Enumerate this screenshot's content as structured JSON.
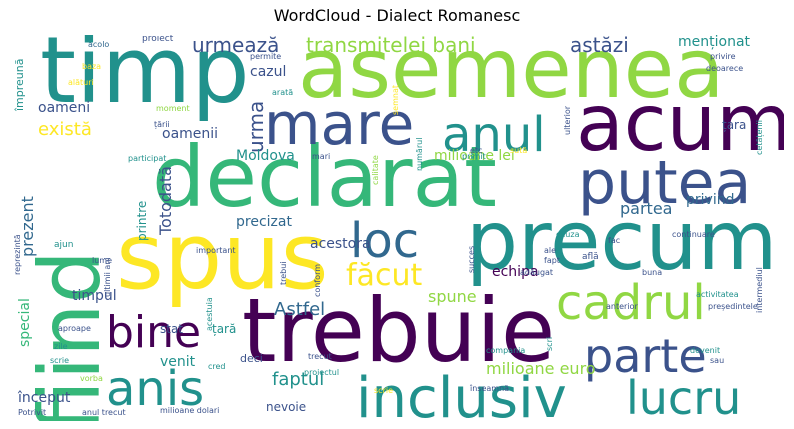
{
  "title": "WordCloud - Dialect Romanesc",
  "colors": {
    "dark_purple": "#440154",
    "indigo": "#3b528b",
    "blue": "#31688e",
    "teal": "#21918c",
    "green": "#35b779",
    "lime": "#90d743",
    "yellow": "#fde725"
  },
  "words": [
    "asemenea",
    "timp",
    "declarat",
    "spus",
    "precum",
    "acum",
    "trebuie",
    "fiind",
    "putea",
    "mare",
    "anul",
    "loc",
    "cadrul",
    "parte",
    "inclusiv",
    "lucru",
    "anis",
    "bine",
    "făcut",
    "transmitelei bani",
    "urmează",
    "astăzi",
    "menționat",
    "există",
    "oameni",
    "oamenii",
    "urma",
    "cazul",
    "Moldova",
    "milioane lei",
    "Totodată",
    "prezent",
    "partea",
    "precizat",
    "privind",
    "acestora",
    "spune",
    "echipa",
    "Astfel",
    "timpul",
    "special",
    "faptul",
    "milioane euro",
    "venit",
    "început",
    "nevoie",
    "țara",
    "țară",
    "stat",
    "printre",
    "proiect",
    "acolo",
    "împreună",
    "baza",
    "alături",
    "permite",
    "moment",
    "țării",
    "arată",
    "semnat",
    "privire",
    "deoarece",
    "ulterior",
    "cetățenii",
    "lume",
    "participat",
    "reprezintă",
    "ajun",
    "important",
    "mari",
    "calitate",
    "numărul",
    "primit",
    "etc",
    "sută",
    "cauza",
    "continuare",
    "ale",
    "fapt",
    "fac",
    "află",
    "adăugat",
    "buna",
    "compania",
    "activitatea",
    "anterior",
    "președintele",
    "intermediul",
    "acestuia",
    "cred",
    "deci",
    "trecut",
    "proiectul",
    "scri",
    "devenit",
    "scrie",
    "zile",
    "vorba",
    "Potrivit",
    "anul trecut",
    "milioane dolari",
    "înseamnă",
    "succes",
    "aproape",
    "ultimii ani",
    "conform",
    "trebui",
    "scrie",
    "sau"
  ]
}
